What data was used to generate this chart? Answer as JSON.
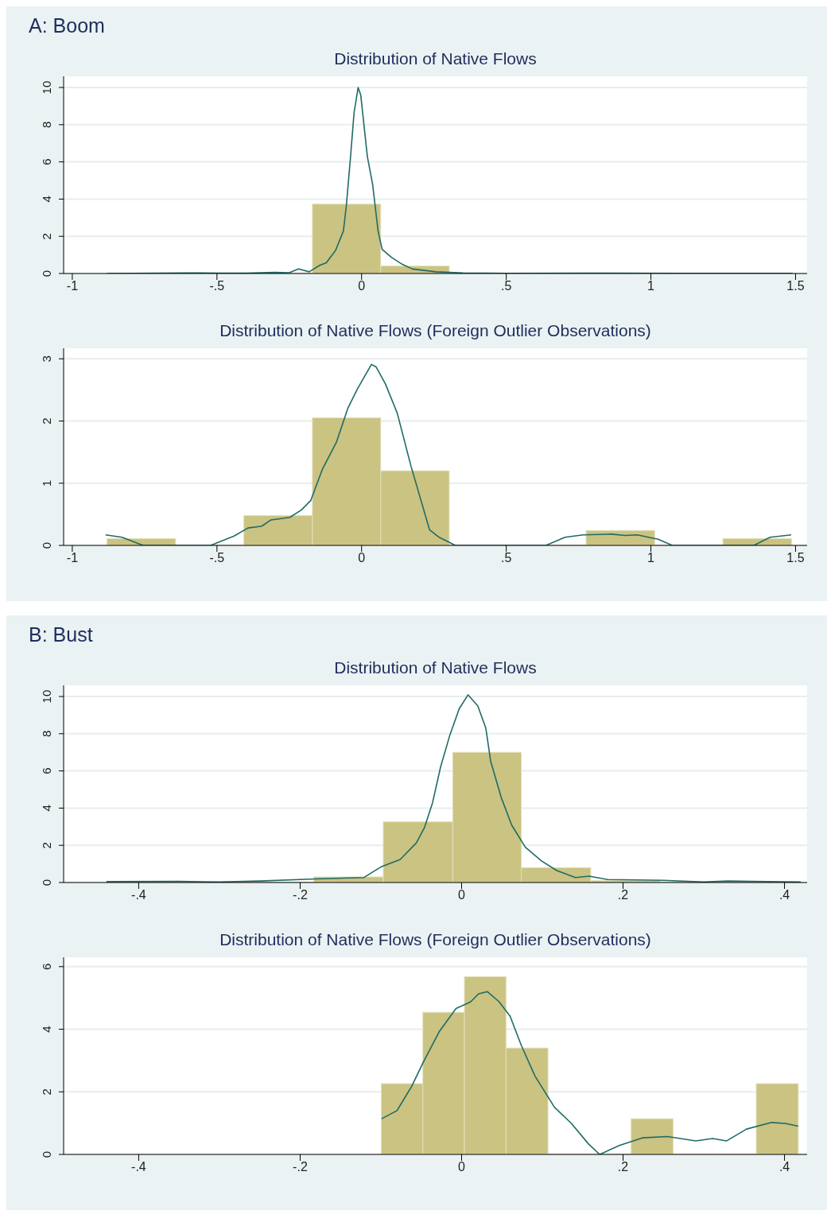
{
  "chart_data": [
    {
      "type": "histogram",
      "title": "Distribution of Native Flows",
      "annotations": [
        "A: Boom"
      ],
      "bins": [
        -0.88,
        -0.643,
        -0.407,
        -0.17,
        0.066,
        0.303,
        0.54,
        0.776,
        1.013,
        1.249,
        1.486
      ],
      "values": [
        0,
        0,
        0,
        3.73,
        0.4,
        0,
        0,
        0,
        0,
        0
      ],
      "color": "#cbc382",
      "series": [
        {
          "type": "line",
          "color": "#1f6b66",
          "x": [
            -0.88,
            -0.6,
            -0.5,
            -0.4,
            -0.3,
            -0.25,
            -0.218,
            -0.181,
            -0.145,
            -0.122,
            -0.09,
            -0.063,
            -0.053,
            -0.039,
            -0.026,
            -0.012,
            -0.003,
            0.02,
            0.038,
            0.057,
            0.071,
            0.103,
            0.14,
            0.176,
            0.258,
            0.35,
            0.5,
            0.8,
            1.1,
            1.49
          ],
          "values": [
            0,
            0.03,
            0.02,
            0.02,
            0.06,
            0.04,
            0.25,
            0.09,
            0.44,
            0.58,
            1.24,
            2.28,
            3.6,
            6.13,
            8.65,
            10.0,
            9.6,
            6.28,
            4.8,
            2.28,
            1.3,
            0.87,
            0.5,
            0.24,
            0.09,
            0.03,
            0.01,
            0.02,
            0.01,
            0.01
          ]
        }
      ],
      "xlim": [
        -1.03,
        1.54
      ],
      "xticks": [
        {
          "value": -1,
          "label": "-1"
        },
        {
          "value": -0.5,
          "label": "-.5"
        },
        {
          "value": 0,
          "label": "0"
        },
        {
          "value": 0.5,
          "label": ".5"
        },
        {
          "value": 1,
          "label": "1"
        },
        {
          "value": 1.5,
          "label": "1.5"
        }
      ],
      "ylim": [
        0,
        10.6
      ],
      "yticks": [
        0,
        2,
        4,
        6,
        8,
        10
      ],
      "grid": "y"
    },
    {
      "type": "histogram",
      "title": "Distribution of Native Flows (Foreign Outlier Observations)",
      "bins": [
        -0.88,
        -0.643,
        -0.407,
        -0.17,
        0.066,
        0.303,
        0.54,
        0.776,
        1.013,
        1.249,
        1.486
      ],
      "values": [
        0.11,
        0,
        0.48,
        2.05,
        1.2,
        0,
        0,
        0.24,
        0,
        0.11
      ],
      "color": "#cbc382",
      "series": [
        {
          "type": "line",
          "color": "#1f6b66",
          "x": [
            -0.885,
            -0.828,
            -0.755,
            -0.6,
            -0.522,
            -0.441,
            -0.393,
            -0.345,
            -0.313,
            -0.248,
            -0.208,
            -0.176,
            -0.135,
            -0.087,
            -0.047,
            -0.014,
            0.034,
            0.05,
            0.082,
            0.123,
            0.171,
            0.235,
            0.268,
            0.324,
            0.5,
            0.637,
            0.703,
            0.766,
            0.864,
            0.912,
            0.953,
            1.025,
            1.074,
            1.2,
            1.356,
            1.412,
            1.485
          ],
          "values": [
            0.17,
            0.13,
            0,
            0,
            0,
            0.15,
            0.28,
            0.31,
            0.41,
            0.45,
            0.57,
            0.72,
            1.23,
            1.66,
            2.21,
            2.52,
            2.91,
            2.87,
            2.6,
            2.13,
            1.27,
            0.25,
            0.13,
            0,
            0,
            0,
            0.13,
            0.17,
            0.18,
            0.16,
            0.17,
            0.1,
            0,
            0,
            0,
            0.13,
            0.17
          ]
        }
      ],
      "xlim": [
        -1.03,
        1.54
      ],
      "xticks": [
        {
          "value": -1,
          "label": "-1"
        },
        {
          "value": -0.5,
          "label": "-.5"
        },
        {
          "value": 0,
          "label": "0"
        },
        {
          "value": 0.5,
          "label": ".5"
        },
        {
          "value": 1,
          "label": "1"
        },
        {
          "value": 1.5,
          "label": "1.5"
        }
      ],
      "ylim": [
        0,
        3.17
      ],
      "yticks": [
        0,
        1,
        2,
        3
      ],
      "grid": "y"
    },
    {
      "type": "histogram",
      "title": "Distribution of Native Flows",
      "annotations": [
        "B: Bust"
      ],
      "bins": [
        -0.44,
        -0.354,
        -0.269,
        -0.183,
        -0.097,
        -0.011,
        0.074,
        0.16,
        0.246,
        0.331,
        0.417
      ],
      "values": [
        0,
        0,
        0,
        0.3,
        3.26,
        7.0,
        0.8,
        0.1,
        0,
        0
      ],
      "color": "#cbc382",
      "series": [
        {
          "type": "line",
          "color": "#1f6b66",
          "x": [
            -0.44,
            -0.35,
            -0.3,
            -0.25,
            -0.181,
            -0.121,
            -0.099,
            -0.076,
            -0.056,
            -0.046,
            -0.036,
            -0.026,
            -0.015,
            -0.003,
            0.008,
            0.02,
            0.03,
            0.036,
            0.049,
            0.062,
            0.079,
            0.099,
            0.118,
            0.141,
            0.158,
            0.181,
            0.25,
            0.3,
            0.33,
            0.36,
            0.42
          ],
          "values": [
            0.05,
            0.06,
            0.03,
            0.08,
            0.19,
            0.27,
            0.86,
            1.24,
            2.13,
            2.95,
            4.29,
            6.22,
            7.86,
            9.34,
            10.09,
            9.5,
            8.3,
            6.52,
            4.58,
            3.09,
            1.9,
            1.16,
            0.64,
            0.27,
            0.34,
            0.16,
            0.12,
            0.03,
            0.08,
            0.06,
            0.03
          ]
        }
      ],
      "xlim": [
        -0.493,
        0.428
      ],
      "xticks": [
        {
          "value": -0.4,
          "label": "-.4"
        },
        {
          "value": -0.2,
          "label": "-.2"
        },
        {
          "value": 0,
          "label": "0"
        },
        {
          "value": 0.2,
          "label": ".2"
        },
        {
          "value": 0.4,
          "label": ".4"
        }
      ],
      "ylim": [
        0,
        10.6
      ],
      "yticks": [
        0,
        2,
        4,
        6,
        8,
        10
      ],
      "grid": "y"
    },
    {
      "type": "histogram",
      "title": "Distribution of Native Flows (Foreign Outlier Observations)",
      "bins": [
        -0.0995,
        -0.048,
        0.0035,
        0.055,
        0.107,
        0.158,
        0.21,
        0.262,
        0.313,
        0.365,
        0.417
      ],
      "values": [
        2.26,
        4.54,
        5.68,
        3.4,
        0,
        0,
        1.14,
        0,
        0,
        2.26
      ],
      "color": "#cbc382",
      "series": [
        {
          "type": "line",
          "color": "#1f6b66",
          "x": [
            -0.099,
            -0.08,
            -0.062,
            -0.048,
            -0.028,
            -0.007,
            0.011,
            0.021,
            0.032,
            0.046,
            0.06,
            0.074,
            0.091,
            0.115,
            0.136,
            0.157,
            0.171,
            0.196,
            0.224,
            0.255,
            0.29,
            0.311,
            0.328,
            0.353,
            0.384,
            0.401,
            0.417
          ],
          "values": [
            1.14,
            1.4,
            2.17,
            2.92,
            3.91,
            4.66,
            4.87,
            5.13,
            5.2,
            4.89,
            4.42,
            3.48,
            2.5,
            1.51,
            0.99,
            0.34,
            0,
            0.29,
            0.53,
            0.57,
            0.43,
            0.51,
            0.43,
            0.81,
            1.02,
            0.99,
            0.9
          ]
        }
      ],
      "xlim": [
        -0.493,
        0.428
      ],
      "xticks": [
        {
          "value": -0.4,
          "label": "-.4"
        },
        {
          "value": -0.2,
          "label": "-.2"
        },
        {
          "value": 0,
          "label": "0"
        },
        {
          "value": 0.2,
          "label": ".2"
        },
        {
          "value": 0.4,
          "label": ".4"
        }
      ],
      "ylim": [
        0,
        6.3
      ],
      "yticks": [
        0,
        2,
        4,
        6
      ],
      "grid": "y"
    }
  ]
}
